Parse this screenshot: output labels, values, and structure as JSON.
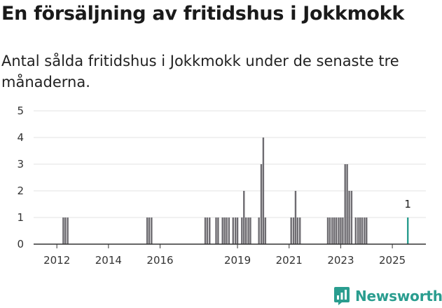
{
  "title": "En försäljning av fritidshus i Jokkmokk",
  "subtitle": "Antal sålda fritidshus i Jokkmokk under de senaste tre månaderna.",
  "brand": {
    "name": "Newsworthy",
    "color": "#2a9d8f"
  },
  "chart_data": {
    "type": "bar",
    "title": "En försäljning av fritidshus i Jokkmokk",
    "subtitle": "Antal sålda fritidshus i Jokkmokk under de senaste tre månaderna.",
    "xlabel": "",
    "ylabel": "",
    "ylim": [
      0,
      5
    ],
    "yticks": [
      0,
      1,
      2,
      3,
      4,
      5
    ],
    "xlim": [
      2011.1,
      2026.3
    ],
    "xticks": [
      2012,
      2014,
      2016,
      2019,
      2021,
      2023,
      2025
    ],
    "grid": true,
    "bar_color": "#6e6c71",
    "highlight_color": "#2a9d8f",
    "annotation": {
      "x": 2025.6,
      "value": 1,
      "label": "1"
    },
    "x": [
      2012.25,
      2012.33,
      2012.42,
      2015.5,
      2015.58,
      2015.67,
      2017.75,
      2017.83,
      2017.92,
      2018.17,
      2018.25,
      2018.42,
      2018.5,
      2018.58,
      2018.67,
      2018.83,
      2018.92,
      2019.0,
      2019.17,
      2019.25,
      2019.33,
      2019.42,
      2019.5,
      2019.83,
      2019.92,
      2020.0,
      2020.08,
      2021.08,
      2021.17,
      2021.25,
      2021.33,
      2021.42,
      2022.5,
      2022.58,
      2022.67,
      2022.75,
      2022.83,
      2022.92,
      2023.0,
      2023.08,
      2023.17,
      2023.25,
      2023.33,
      2023.42,
      2023.58,
      2023.67,
      2023.75,
      2023.83,
      2023.92,
      2024.0,
      2025.6
    ],
    "values": [
      1,
      1,
      1,
      1,
      1,
      1,
      1,
      1,
      1,
      1,
      1,
      1,
      1,
      1,
      1,
      1,
      1,
      1,
      1,
      2,
      1,
      1,
      1,
      1,
      3,
      4,
      1,
      1,
      1,
      2,
      1,
      1,
      1,
      1,
      1,
      1,
      1,
      1,
      1,
      1,
      3,
      3,
      2,
      2,
      1,
      1,
      1,
      1,
      1,
      1,
      1
    ],
    "highlight_index": 50
  }
}
